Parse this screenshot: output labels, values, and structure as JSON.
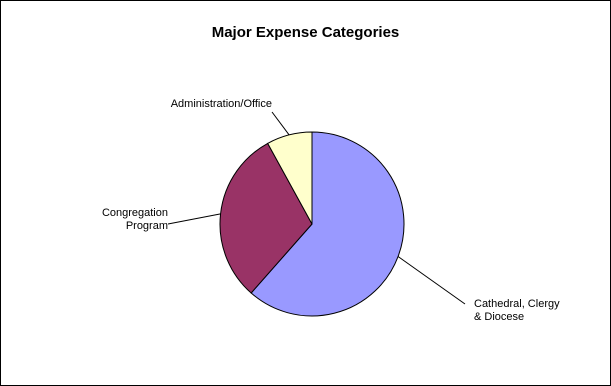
{
  "chart_data": {
    "type": "pie",
    "title": "Major Expense Categories",
    "slices": [
      {
        "label": [
          "Cathedral, Clergy",
          "& Diocese"
        ],
        "value": 61.5,
        "color": "#9999ff"
      },
      {
        "label": [
          "Congregation",
          "Program"
        ],
        "value": 30.5,
        "color": "#993366"
      },
      {
        "label": [
          "Administration/Office"
        ],
        "value": 8.0,
        "color": "#ffffcc"
      }
    ],
    "legend": "none",
    "start_angle": "12 o'clock",
    "direction": "clockwise"
  }
}
